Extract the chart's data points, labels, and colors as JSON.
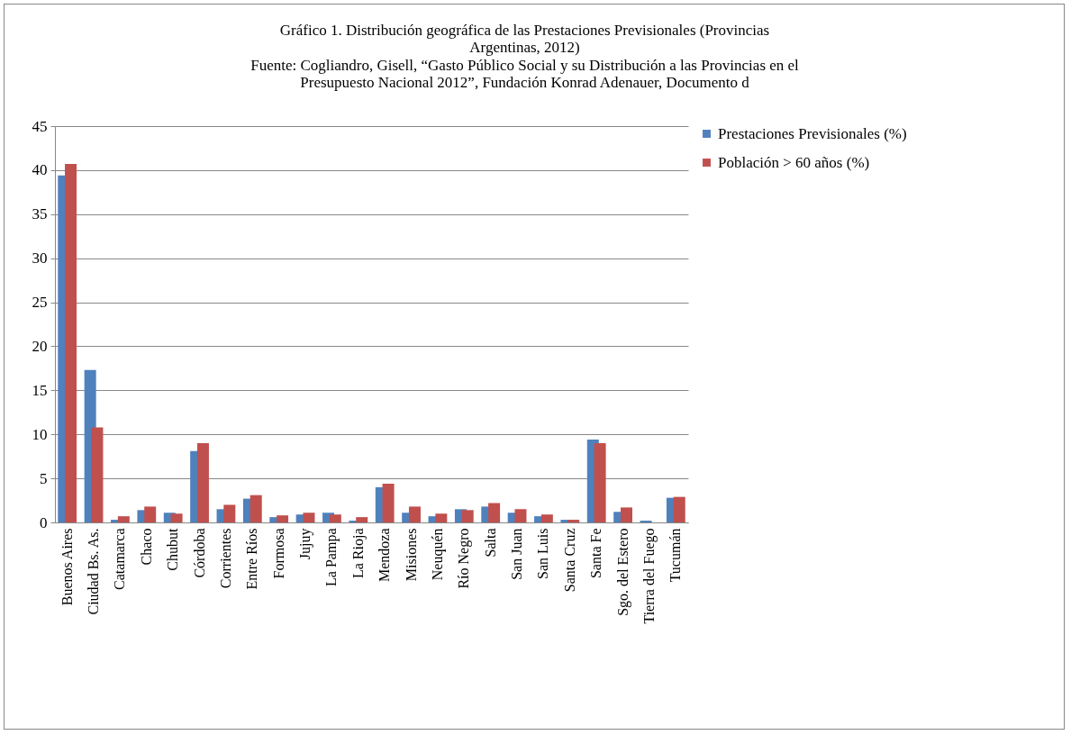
{
  "chart_data": {
    "type": "bar",
    "title": "Gráfico 1. Distribución geográfica de las Prestaciones Previsionales (Provincias Argentinas, 2012)",
    "subtitle": "Fuente: Cogliandro, Gisell, “Gasto Público Social y su Distribución a las Provincias en el Presupuesto Nacional 2012”, Fundación Konrad Adenauer, Documento d",
    "categories": [
      "Buenos Aires",
      "Ciudad Bs. As.",
      "Catamarca",
      "Chaco",
      "Chubut",
      "Córdoba",
      "Corrientes",
      "Entre Ríos",
      "Formosa",
      "Jujuy",
      "La Pampa",
      "La Rioja",
      "Mendoza",
      "Misiones",
      "Neuquén",
      "Río Negro",
      "Salta",
      "San Juan",
      "San Luis",
      "Santa Cruz",
      "Santa Fe",
      "Sgo. del Estero",
      "Tierra del Fuego",
      "Tucumán"
    ],
    "series": [
      {
        "name": "Prestaciones Previsionales (%)",
        "color": "#4f81bd",
        "values": [
          39.4,
          17.3,
          0.3,
          1.4,
          1.1,
          8.1,
          1.5,
          2.7,
          0.6,
          0.9,
          1.1,
          0.2,
          4.0,
          1.1,
          0.7,
          1.5,
          1.8,
          1.1,
          0.7,
          0.3,
          9.4,
          1.2,
          0.2,
          2.8
        ]
      },
      {
        "name": "Población > 60 años (%)",
        "color": "#c0504d",
        "values": [
          40.7,
          10.8,
          0.7,
          1.8,
          1.0,
          9.0,
          2.0,
          3.1,
          0.8,
          1.1,
          0.9,
          0.6,
          4.4,
          1.8,
          1.0,
          1.4,
          2.2,
          1.5,
          0.9,
          0.3,
          9.0,
          1.7,
          null,
          2.9
        ]
      }
    ],
    "ylim": [
      0,
      45
    ],
    "yticks": [
      0,
      5,
      10,
      15,
      20,
      25,
      30,
      35,
      40,
      45
    ],
    "grid": "y",
    "legend": "right"
  }
}
